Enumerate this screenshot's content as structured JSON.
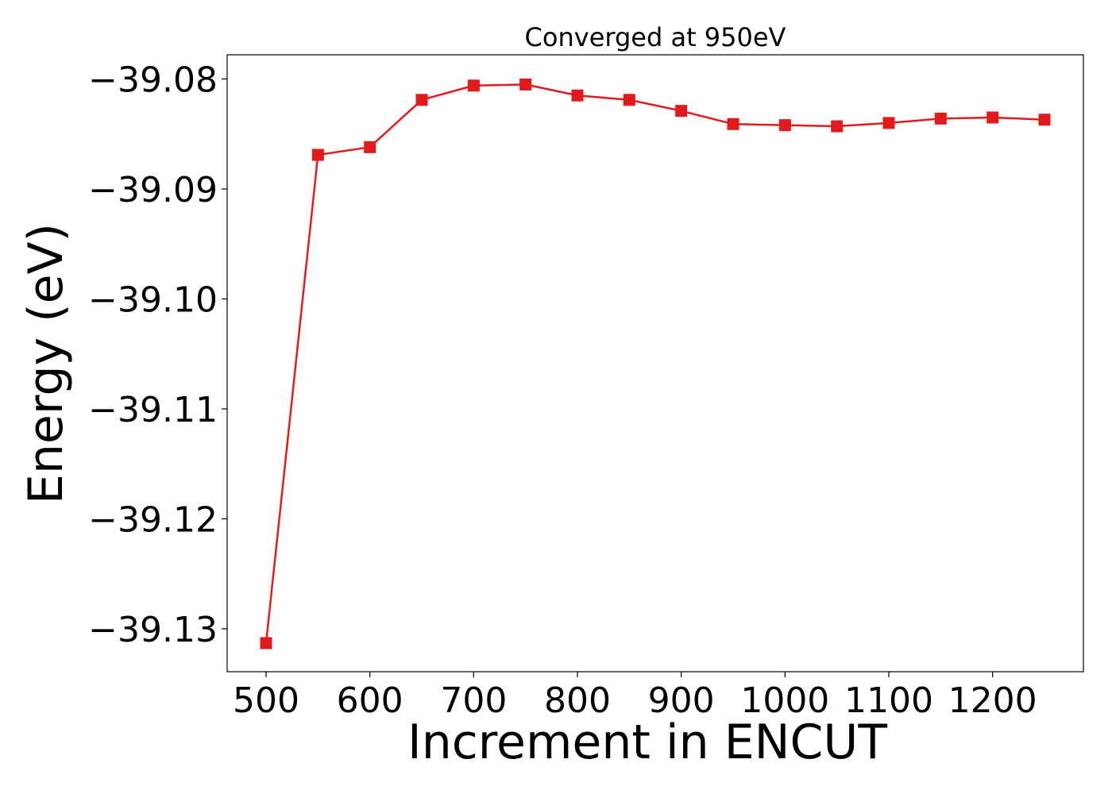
{
  "chart_data": {
    "type": "line",
    "title": "Converged at 950eV",
    "xlabel": "Increment in ENCUT",
    "ylabel": "Energy (eV)",
    "xlim": [
      462.5,
      1287.5
    ],
    "ylim": [
      -39.1339,
      -39.0778
    ],
    "x_ticks": [
      500,
      600,
      700,
      800,
      900,
      1000,
      1100,
      1200
    ],
    "x_tick_labels": [
      "500",
      "600",
      "700",
      "800",
      "900",
      "1000",
      "1100",
      "1200"
    ],
    "y_ticks": [
      -39.08,
      -39.09,
      -39.1,
      -39.11,
      -39.12,
      -39.13
    ],
    "y_tick_labels": [
      "−39.08",
      "−39.09",
      "−39.10",
      "−39.11",
      "−39.12",
      "−39.13"
    ],
    "grid": false,
    "series": [
      {
        "color": "#e31a1c",
        "marker": "square",
        "x": [
          500,
          550,
          600,
          650,
          700,
          750,
          800,
          850,
          900,
          950,
          1000,
          1050,
          1100,
          1150,
          1200,
          1250
        ],
        "y": [
          -39.1313,
          -39.0869,
          -39.0862,
          -39.0819,
          -39.0806,
          -39.0805,
          -39.0815,
          -39.0819,
          -39.0829,
          -39.0841,
          -39.0842,
          -39.0843,
          -39.084,
          -39.0836,
          -39.0835,
          -39.0837
        ]
      }
    ]
  }
}
